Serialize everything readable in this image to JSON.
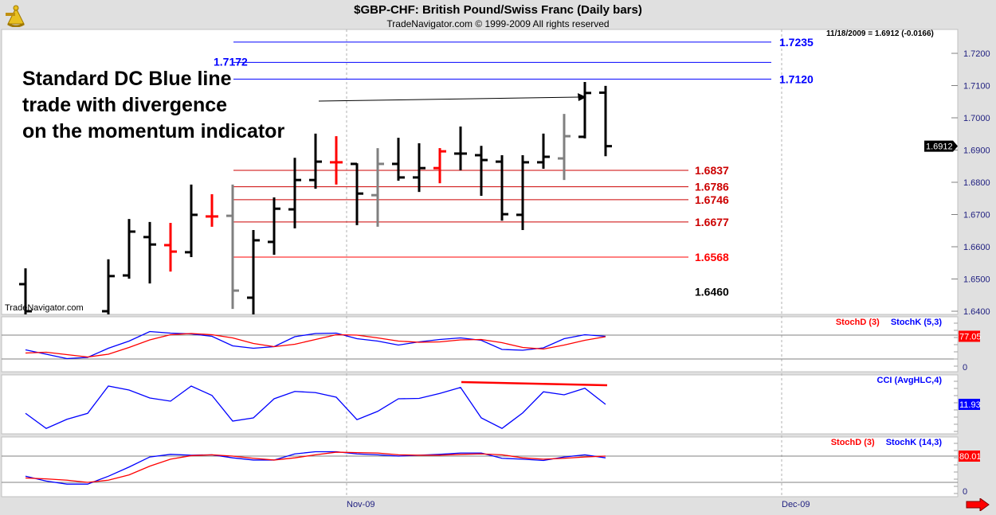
{
  "header": {
    "title": "$GBP-CHF:  British Pound/Swiss Franc  (Daily bars)",
    "subtitle": "TradeNavigator.com © 1999-2009 All rights reserved",
    "readout": "11/18/2009 = 1.6912 (-0.0166)",
    "watermark": "TradeNavigator.com",
    "logo_icon": "sextant-icon"
  },
  "annotation": [
    "Standard DC Blue line",
    "trade with divergence",
    "on the momentum indicator"
  ],
  "colors": {
    "up": "#000000",
    "down_red": "#ff0000",
    "gray": "#808080",
    "blue": "#0000ff",
    "red": "#ff0000",
    "darkred": "#cc0000"
  },
  "chart_data": [
    {
      "type": "ohlc",
      "title": "$GBP-CHF Daily bars",
      "ylim": [
        1.6385,
        1.7255
      ],
      "yticks": [
        "1.7200",
        "1.7100",
        "1.7000",
        "1.6900",
        "1.6800",
        "1.6700",
        "1.6600",
        "1.6500",
        "1.6400"
      ],
      "xticks": [
        {
          "label": "Nov-09",
          "index": 15.5
        },
        {
          "label": "Dec-09",
          "index": 36.5
        }
      ],
      "last_price": "1.6912",
      "bars": [
        {
          "o": 1.6484,
          "h": 1.6533,
          "l": 1.636,
          "c": 1.64,
          "color": "black"
        },
        null,
        null,
        null,
        {
          "o": 1.64,
          "h": 1.6561,
          "l": 1.636,
          "c": 1.6509,
          "color": "black"
        },
        {
          "o": 1.6511,
          "h": 1.6686,
          "l": 1.6501,
          "c": 1.6647,
          "color": "black"
        },
        {
          "o": 1.663,
          "h": 1.6677,
          "l": 1.6486,
          "c": 1.6607,
          "color": "black"
        },
        {
          "o": 1.6605,
          "h": 1.6674,
          "l": 1.6523,
          "c": 1.6585,
          "color": "red"
        },
        {
          "o": 1.6583,
          "h": 1.6793,
          "l": 1.6568,
          "c": 1.6699,
          "color": "black"
        },
        {
          "o": 1.6694,
          "h": 1.6763,
          "l": 1.6662,
          "c": 1.6694,
          "color": "red"
        },
        {
          "o": 1.6696,
          "h": 1.6793,
          "l": 1.6407,
          "c": 1.6464,
          "color": "gray"
        },
        {
          "o": 1.6442,
          "h": 1.6652,
          "l": 1.638,
          "c": 1.662,
          "color": "black"
        },
        {
          "o": 1.6615,
          "h": 1.6753,
          "l": 1.6575,
          "c": 1.6718,
          "color": "black"
        },
        {
          "o": 1.6716,
          "h": 1.6876,
          "l": 1.6657,
          "c": 1.6807,
          "color": "black"
        },
        {
          "o": 1.6807,
          "h": 1.6951,
          "l": 1.678,
          "c": 1.6864,
          "color": "black"
        },
        {
          "o": 1.6862,
          "h": 1.6943,
          "l": 1.6793,
          "c": 1.6862,
          "color": "red"
        },
        {
          "o": 1.6857,
          "h": 1.6859,
          "l": 1.6667,
          "c": 1.6765,
          "color": "black"
        },
        {
          "o": 1.676,
          "h": 1.6906,
          "l": 1.6662,
          "c": 1.6857,
          "color": "gray"
        },
        {
          "o": 1.6857,
          "h": 1.6938,
          "l": 1.6805,
          "c": 1.6815,
          "color": "black"
        },
        {
          "o": 1.6815,
          "h": 1.6921,
          "l": 1.677,
          "c": 1.6844,
          "color": "black"
        },
        {
          "o": 1.6844,
          "h": 1.6906,
          "l": 1.6797,
          "c": 1.6896,
          "color": "red"
        },
        {
          "o": 1.6889,
          "h": 1.6973,
          "l": 1.6837,
          "c": 1.6889,
          "color": "black"
        },
        {
          "o": 1.6884,
          "h": 1.6913,
          "l": 1.6758,
          "c": 1.6869,
          "color": "black"
        },
        {
          "o": 1.6864,
          "h": 1.6884,
          "l": 1.6681,
          "c": 1.6701,
          "color": "black"
        },
        {
          "o": 1.6699,
          "h": 1.6884,
          "l": 1.6652,
          "c": 1.6862,
          "color": "black"
        },
        {
          "o": 1.6862,
          "h": 1.6951,
          "l": 1.6842,
          "c": 1.6879,
          "color": "black"
        },
        {
          "o": 1.6874,
          "h": 1.7012,
          "l": 1.6807,
          "c": 1.6943,
          "color": "gray"
        },
        {
          "o": 1.6941,
          "h": 1.7111,
          "l": 1.6936,
          "c": 1.7077,
          "color": "black"
        },
        {
          "o": 1.7078,
          "h": 1.7099,
          "l": 1.6881,
          "c": 1.6912,
          "color": "black"
        }
      ],
      "levels": [
        {
          "value": 1.7235,
          "label": "1.7235",
          "color": "blue",
          "label_side": "right",
          "start": 11,
          "end": 36
        },
        {
          "value": 1.7172,
          "label": "1.7172",
          "color": "blue",
          "label_side": "left",
          "start": 11,
          "end": 36
        },
        {
          "value": 1.712,
          "label": "1.7120",
          "color": "blue",
          "label_side": "right",
          "start": 11,
          "end": 36
        },
        {
          "value": 1.6837,
          "label": "1.6837",
          "color": "darkred",
          "label_side": "right",
          "start": 11,
          "end": 32
        },
        {
          "value": 1.6786,
          "label": "1.6786",
          "color": "darkred",
          "label_side": "right",
          "start": 11,
          "end": 32
        },
        {
          "value": 1.6746,
          "label": "1.6746",
          "color": "darkred",
          "label_side": "right",
          "start": 11,
          "end": 32
        },
        {
          "value": 1.6677,
          "label": "1.6677",
          "color": "darkred",
          "label_side": "right",
          "start": 11,
          "end": 32
        },
        {
          "value": 1.6568,
          "label": "1.6568",
          "color": "red",
          "label_side": "right",
          "start": 11,
          "end": 32
        },
        {
          "value": 1.646,
          "label": "1.6460",
          "color": "black",
          "label_side": "none",
          "start": 11,
          "end": 32
        }
      ],
      "level_1646_label": "1.6460",
      "arrow": {
        "from": {
          "index": 14,
          "price": 1.716
        },
        "to": {
          "index": 27,
          "price": 1.7072
        }
      }
    },
    {
      "type": "line",
      "name": "Stochastic (5,3)",
      "legend": [
        {
          "label": "StochD (3)",
          "color": "red"
        },
        {
          "label": "StochK (5,3)",
          "color": "blue"
        }
      ],
      "ylim": [
        0,
        100
      ],
      "guides": [
        20,
        80
      ],
      "yticks": [
        "0"
      ],
      "last_value": "77.05",
      "series": [
        {
          "name": "StochK",
          "values": [
            43,
            32,
            21,
            24,
            47,
            65,
            89,
            85,
            83,
            77,
            53,
            47,
            51,
            76,
            84,
            85,
            71,
            65,
            55,
            63,
            69,
            73,
            67,
            44,
            42,
            48,
            71,
            81,
            77
          ]
        },
        {
          "name": "StochD",
          "values": [
            35,
            37,
            31,
            25,
            32,
            49,
            68,
            81,
            84,
            81,
            73,
            59,
            51,
            57,
            69,
            81,
            80,
            73,
            65,
            62,
            63,
            68,
            69,
            61,
            49,
            45,
            55,
            67,
            76
          ]
        }
      ]
    },
    {
      "type": "line",
      "name": "CCI (AvgHLC,4)",
      "legend": [
        {
          "label": "CCI (AvgHLC,4)",
          "color": "blue"
        }
      ],
      "ylim": [
        -150,
        150
      ],
      "last_value": "11.93",
      "series": [
        {
          "name": "CCI",
          "values": [
            -33,
            -109,
            -63,
            -33,
            104,
            84,
            44,
            28,
            104,
            57,
            -72,
            -56,
            40,
            77,
            71,
            48,
            -65,
            -23,
            40,
            42,
            67,
            97,
            -56,
            -109,
            -31,
            75,
            60,
            93,
            11.93
          ]
        }
      ],
      "divergence_line": {
        "from": {
          "index": 21,
          "value": 124
        },
        "to": {
          "index": 28,
          "value": 108
        }
      }
    },
    {
      "type": "line",
      "name": "Stochastic (14,3)",
      "legend": [
        {
          "label": "StochD (3)",
          "color": "red"
        },
        {
          "label": "StochK (14,3)",
          "color": "blue"
        }
      ],
      "ylim": [
        0,
        100
      ],
      "guides": [
        20,
        80
      ],
      "yticks": [
        "0"
      ],
      "last_value": "80.01",
      "series": [
        {
          "name": "StochK",
          "values": [
            34,
            23,
            16,
            16,
            34,
            55,
            78,
            84,
            82,
            83,
            76,
            71,
            71,
            85,
            90,
            90,
            85,
            83,
            80,
            82,
            84,
            87,
            87,
            75,
            73,
            70,
            78,
            83,
            76
          ]
        },
        {
          "name": "StochD",
          "values": [
            30,
            28,
            25,
            20,
            25,
            37,
            57,
            73,
            81,
            83,
            80,
            75,
            71,
            76,
            83,
            89,
            88,
            87,
            83,
            82,
            82,
            84,
            85,
            83,
            76,
            73,
            75,
            78,
            80
          ]
        }
      ]
    }
  ]
}
